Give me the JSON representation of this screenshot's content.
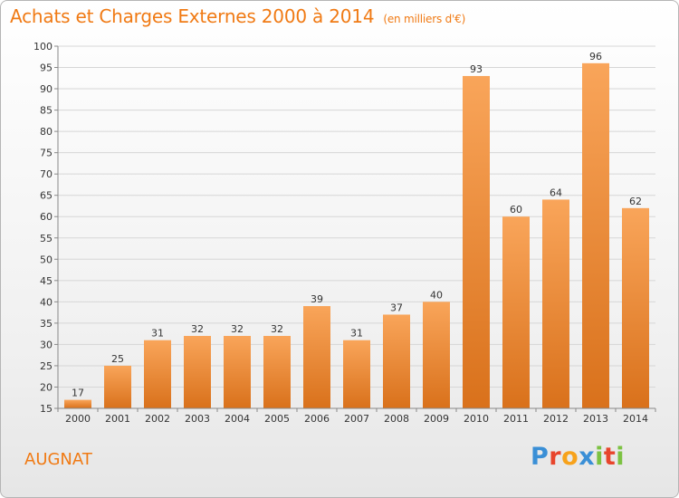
{
  "title": "Achats et Charges Externes 2000 à 2014",
  "subtitle": "(en milliers d'€)",
  "location": "AUGNAT",
  "logo": {
    "letters": [
      {
        "char": "P",
        "color": "#3a8fd6"
      },
      {
        "char": "r",
        "color": "#e8452c"
      },
      {
        "char": "o",
        "color": "#f7a21b"
      },
      {
        "char": "x",
        "color": "#3a8fd6"
      },
      {
        "char": "i",
        "color": "#7cc242"
      },
      {
        "char": "t",
        "color": "#e8452c"
      },
      {
        "char": "i",
        "color": "#7cc242"
      }
    ]
  },
  "colors": {
    "accent": "#f07a14",
    "bar_top": "#f9a55a",
    "bar_bottom": "#d9711b"
  },
  "chart_data": {
    "type": "bar",
    "title": "Achats et Charges Externes 2000 à 2014",
    "subtitle": "(en milliers d'€)",
    "categories": [
      "2000",
      "2001",
      "2002",
      "2003",
      "2004",
      "2005",
      "2006",
      "2007",
      "2008",
      "2009",
      "2010",
      "2011",
      "2012",
      "2013",
      "2014"
    ],
    "values": [
      17,
      25,
      31,
      32,
      32,
      32,
      39,
      31,
      37,
      40,
      93,
      60,
      64,
      96,
      62
    ],
    "ylim": [
      15,
      100
    ],
    "yticks": [
      15,
      20,
      25,
      30,
      35,
      40,
      45,
      50,
      55,
      60,
      65,
      70,
      75,
      80,
      85,
      90,
      95,
      100
    ],
    "grid": true,
    "xlabel": "",
    "ylabel": ""
  }
}
